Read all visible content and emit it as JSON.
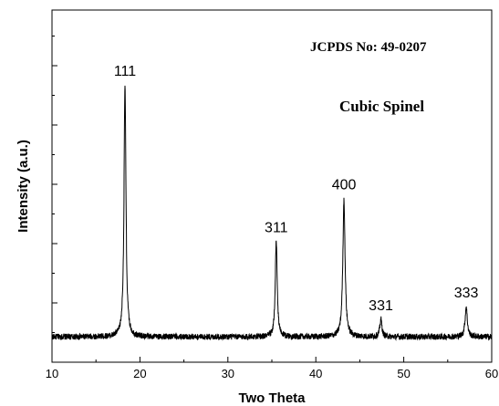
{
  "chart_data": {
    "type": "line",
    "title": "",
    "xlabel": "Two Theta",
    "ylabel": "Intensity (a.u.)",
    "xlim": [
      10,
      60
    ],
    "x_ticks": [
      "10",
      "20",
      "30",
      "40",
      "50",
      "60"
    ],
    "y_tick_labels": "none",
    "grid": false,
    "legend": "none",
    "annotations": [
      "JCPDS No: 49-0207",
      "Cubic Spinel"
    ],
    "baseline": 0.05,
    "noise": 0.012,
    "peaks": [
      {
        "label": "111",
        "x": 18.3,
        "height": 1.0,
        "width": 0.13
      },
      {
        "label": "311",
        "x": 35.5,
        "height": 0.38,
        "width": 0.13
      },
      {
        "label": "400",
        "x": 43.2,
        "height": 0.55,
        "width": 0.15
      },
      {
        "label": "331",
        "x": 47.4,
        "height": 0.07,
        "width": 0.14
      },
      {
        "label": "333",
        "x": 57.1,
        "height": 0.12,
        "width": 0.15
      }
    ]
  }
}
